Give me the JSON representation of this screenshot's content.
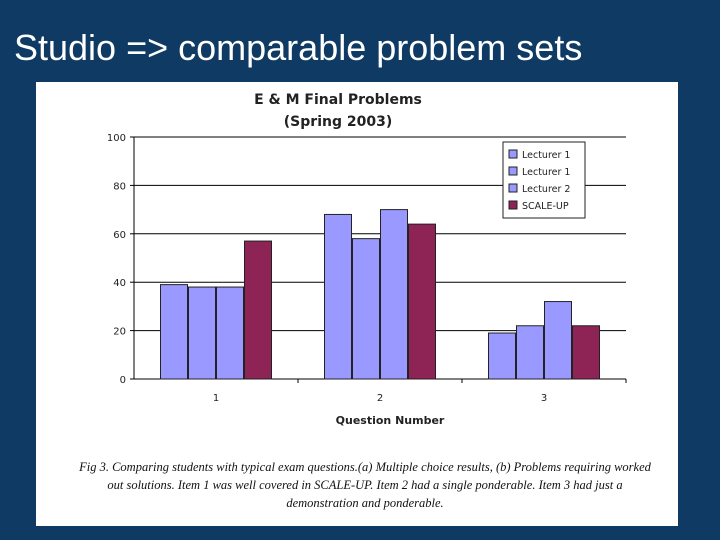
{
  "slide": {
    "title": "Studio => comparable problem sets"
  },
  "chart_data": {
    "type": "bar",
    "title": "E & M Final Problems",
    "subtitle": "(Spring 2003)",
    "xlabel": "Question Number",
    "ylabel": "",
    "categories": [
      "1",
      "2",
      "3"
    ],
    "series": [
      {
        "name": "Lecturer 1",
        "values": [
          39,
          68,
          19
        ],
        "color": "#9999ff"
      },
      {
        "name": "Lecturer 1",
        "values": [
          38,
          58,
          22
        ],
        "color": "#9999ff"
      },
      {
        "name": "Lecturer 2",
        "values": [
          38,
          70,
          32
        ],
        "color": "#9999ff"
      },
      {
        "name": "SCALE-UP",
        "values": [
          57,
          64,
          22
        ],
        "color": "#8e2355"
      }
    ],
    "ylim": [
      0,
      100
    ],
    "yticks": [
      0,
      20,
      40,
      60,
      80,
      100
    ],
    "grid": true,
    "legend": "top-right"
  },
  "caption": {
    "text": "Fig 3. Comparing students with typical exam questions.(a) Multiple choice results, (b) Problems requiring worked out solutions. Item 1 was well covered in SCALE-UP. Item 2 had a single ponderable. Item 3 had just a demonstration and ponderable."
  }
}
